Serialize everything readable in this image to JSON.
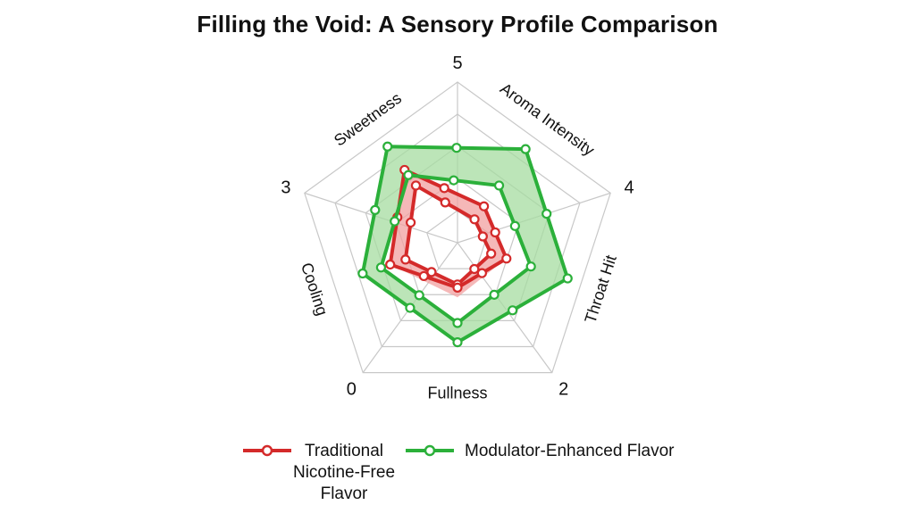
{
  "title": "Filling the Void: A Sensory Profile Comparison",
  "chart_data": {
    "type": "radar",
    "title": "Filling the Void: A Sensory Profile Comparison",
    "axes": [
      "Aroma Intensity",
      "Throat Hit",
      "Fullness",
      "Cooling",
      "Sweetness"
    ],
    "vertex_labels": [
      "5",
      "4",
      "2",
      "0",
      "3"
    ],
    "range": [
      0,
      5
    ],
    "grid": true,
    "legend_position": "bottom",
    "series": [
      {
        "name": "Traditional Nicotine-Free Flavor",
        "color": "#d42a2a",
        "band_color": "#f2a0a0",
        "values": [
          1.4,
          1.6,
          1.4,
          2.2,
          2.8
        ],
        "band_low": [
          0.9,
          1.1,
          1.3,
          1.7,
          2.2
        ],
        "band_high": [
          1.4,
          1.6,
          1.7,
          2.2,
          2.8
        ]
      },
      {
        "name": "Modulator-Enhanced Flavor",
        "color": "#2bb03a",
        "band_color": "#a6dca0",
        "values": [
          3.6,
          3.6,
          3.1,
          3.1,
          3.7
        ],
        "band_low": [
          2.2,
          2.4,
          2.5,
          2.5,
          2.6
        ],
        "band_high": [
          3.6,
          3.6,
          3.1,
          3.1,
          3.7
        ]
      }
    ]
  }
}
